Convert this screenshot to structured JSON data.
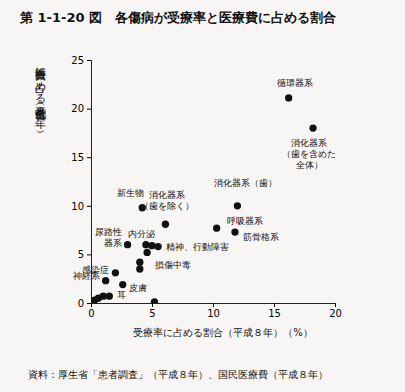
{
  "chart_data": {
    "type": "scatter",
    "title": "第 1-1-20 図　各傷病が受療率と医療費に占める割合",
    "x_label": "受療率に占める割合（平成８年）（%）",
    "y_label": "医療費に占める割合（平成８年）（%）",
    "source": "資料：厚生省「患者調査」（平成８年）、国民医療費（平成８年）",
    "x": [
      16.2,
      18.2,
      4.2,
      6.1,
      12.0,
      10.3,
      11.8,
      3.0,
      4.5,
      5.0,
      5.5,
      4.6,
      4.0,
      4.0,
      2.0,
      1.2,
      2.6,
      1.0,
      1.5,
      0.3,
      0.6,
      5.2
    ],
    "y": [
      21.1,
      18.0,
      9.8,
      8.1,
      10.0,
      7.7,
      7.3,
      6.0,
      6.0,
      5.9,
      5.8,
      5.2,
      4.2,
      3.5,
      3.1,
      2.3,
      1.9,
      0.7,
      0.7,
      0.3,
      0.5,
      0.1
    ],
    "labels": [
      [
        "循環器系"
      ],
      [
        "消化器系",
        "（歯を含めた",
        "全体）"
      ],
      [
        "新生物"
      ],
      [
        "消化器系",
        "（歯を除く）"
      ],
      [
        "消化器系（歯）"
      ],
      [
        "呼吸器系"
      ],
      [
        "筋骨格系"
      ],
      [
        "尿路性",
        "器系"
      ],
      [
        "内分泌"
      ],
      null,
      [
        "精神、行動障害"
      ],
      [
        "損傷中毒"
      ],
      null,
      null,
      [
        "感染症"
      ],
      [
        "神経系"
      ],
      [
        "皮膚"
      ],
      [
        "耳"
      ],
      null,
      null,
      null,
      null
    ],
    "xlim": [
      0,
      20
    ],
    "xticks": [
      0,
      5,
      10,
      15,
      20
    ],
    "ylim": [
      0,
      25
    ],
    "yticks": [
      0,
      5,
      10,
      15,
      20,
      25
    ],
    "color": "#111111",
    "marker": "circle",
    "grid": false
  }
}
